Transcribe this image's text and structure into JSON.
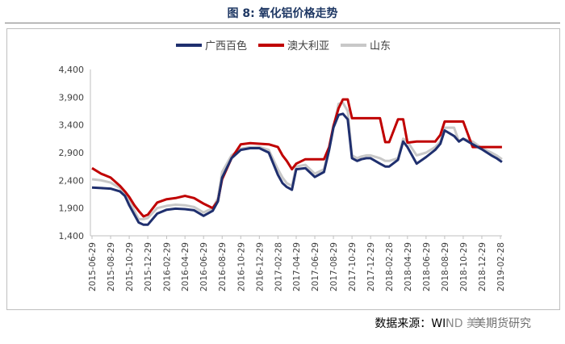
{
  "figure": {
    "title": "图 8: 氧化铝价格走势",
    "source": "数据来源：WIND  美",
    "watermark_text": "美期货研究"
  },
  "colors": {
    "guangxi": "#1f2f6e",
    "australia": "#c00000",
    "shandong": "#c8c8c8",
    "title": "#1f3864"
  },
  "chart_data": {
    "type": "line",
    "title": "",
    "xlabel": "",
    "ylabel": "",
    "ylim": [
      1400,
      4400
    ],
    "yticks": [
      "1,400",
      "1,900",
      "2,400",
      "2,900",
      "3,400",
      "3,900",
      "4,400"
    ],
    "ytick_values": [
      1400,
      1900,
      2400,
      2900,
      3400,
      3900,
      4400
    ],
    "xticks": [
      "2015-06-29",
      "2015-08-29",
      "2015-10-29",
      "2015-12-29",
      "2016-02-29",
      "2016-04-29",
      "2016-06-29",
      "2016-08-29",
      "2016-10-29",
      "2016-12-29",
      "2017-02-28",
      "2017-04-29",
      "2017-06-29",
      "2017-08-29",
      "2017-10-29",
      "2017-12-29",
      "2018-02-28",
      "2018-04-29",
      "2018-06-29",
      "2018-08-29",
      "2018-10-29",
      "2018-12-29",
      "2019-02-28"
    ],
    "legend_position": "top-center",
    "grid": false,
    "series": [
      {
        "name": "广西百色",
        "x": [
          "2015-06-29",
          "2015-07-29",
          "2015-08-29",
          "2015-09-29",
          "2015-10-15",
          "2015-10-29",
          "2015-11-15",
          "2015-11-29",
          "2015-12-15",
          "2015-12-29",
          "2016-01-29",
          "2016-02-29",
          "2016-03-29",
          "2016-04-29",
          "2016-05-29",
          "2016-06-29",
          "2016-07-29",
          "2016-08-15",
          "2016-08-29",
          "2016-09-29",
          "2016-10-29",
          "2016-11-29",
          "2016-12-29",
          "2017-01-29",
          "2017-02-28",
          "2017-03-15",
          "2017-03-29",
          "2017-04-15",
          "2017-04-29",
          "2017-05-29",
          "2017-06-29",
          "2017-07-29",
          "2017-08-15",
          "2017-08-29",
          "2017-09-15",
          "2017-09-29",
          "2017-10-15",
          "2017-10-29",
          "2017-11-15",
          "2017-11-29",
          "2017-12-15",
          "2017-12-29",
          "2018-01-29",
          "2018-02-15",
          "2018-02-28",
          "2018-03-29",
          "2018-04-15",
          "2018-04-29",
          "2018-05-29",
          "2018-06-29",
          "2018-07-29",
          "2018-08-15",
          "2018-08-29",
          "2018-09-29",
          "2018-10-15",
          "2018-10-29",
          "2018-11-29",
          "2018-12-29",
          "2019-01-29",
          "2019-02-15",
          "2019-03-05"
        ],
        "values": [
          2270,
          2260,
          2250,
          2200,
          2120,
          1950,
          1780,
          1640,
          1600,
          1600,
          1800,
          1870,
          1890,
          1880,
          1860,
          1760,
          1850,
          2020,
          2450,
          2800,
          2950,
          2980,
          2980,
          2900,
          2500,
          2350,
          2280,
          2230,
          2600,
          2620,
          2460,
          2550,
          2950,
          3350,
          3580,
          3600,
          3500,
          2800,
          2750,
          2780,
          2800,
          2800,
          2700,
          2650,
          2650,
          2770,
          3100,
          3000,
          2700,
          2820,
          2950,
          3060,
          3300,
          3200,
          3100,
          3150,
          3050,
          2960,
          2850,
          2800,
          2730
        ]
      },
      {
        "name": "澳大利亚",
        "x": [
          "2015-06-29",
          "2015-07-29",
          "2015-08-29",
          "2015-09-29",
          "2015-10-15",
          "2015-10-29",
          "2015-11-15",
          "2015-11-29",
          "2015-12-15",
          "2015-12-29",
          "2016-01-29",
          "2016-02-29",
          "2016-03-29",
          "2016-04-29",
          "2016-05-29",
          "2016-06-29",
          "2016-07-29",
          "2016-08-15",
          "2016-08-29",
          "2016-09-29",
          "2016-10-29",
          "2016-11-29",
          "2016-12-29",
          "2017-01-29",
          "2017-02-28",
          "2017-03-15",
          "2017-03-29",
          "2017-04-15",
          "2017-04-29",
          "2017-05-29",
          "2017-06-29",
          "2017-07-29",
          "2017-08-15",
          "2017-08-29",
          "2017-09-15",
          "2017-09-29",
          "2017-10-15",
          "2017-10-29",
          "2017-11-15",
          "2017-11-29",
          "2017-12-15",
          "2017-12-29",
          "2018-01-29",
          "2018-02-15",
          "2018-02-28",
          "2018-03-29",
          "2018-04-15",
          "2018-04-29",
          "2018-05-29",
          "2018-06-29",
          "2018-07-29",
          "2018-08-15",
          "2018-08-29",
          "2018-09-29",
          "2018-10-15",
          "2018-10-29",
          "2018-11-29",
          "2018-12-29",
          "2019-01-29",
          "2019-02-15",
          "2019-03-05"
        ],
        "values": [
          2620,
          2520,
          2450,
          2300,
          2200,
          2100,
          1950,
          1850,
          1750,
          1780,
          2000,
          2060,
          2080,
          2120,
          2080,
          1980,
          1900,
          2030,
          2420,
          2800,
          3050,
          3070,
          3060,
          3050,
          3000,
          2850,
          2750,
          2600,
          2700,
          2780,
          2780,
          2780,
          3000,
          3380,
          3700,
          3860,
          3860,
          3520,
          3520,
          3520,
          3520,
          3520,
          3520,
          3090,
          3090,
          3500,
          3500,
          3080,
          3100,
          3100,
          3100,
          3220,
          3460,
          3460,
          3460,
          3460,
          3000,
          3000,
          3000,
          3000,
          3000
        ]
      },
      {
        "name": "山东",
        "x": [
          "2015-06-29",
          "2015-07-29",
          "2015-08-29",
          "2015-09-29",
          "2015-10-15",
          "2015-10-29",
          "2015-11-15",
          "2015-11-29",
          "2015-12-15",
          "2015-12-29",
          "2016-01-29",
          "2016-02-29",
          "2016-03-29",
          "2016-04-29",
          "2016-05-29",
          "2016-06-29",
          "2016-07-29",
          "2016-08-15",
          "2016-08-29",
          "2016-09-29",
          "2016-10-29",
          "2016-11-29",
          "2016-12-29",
          "2017-01-29",
          "2017-02-28",
          "2017-03-15",
          "2017-03-29",
          "2017-04-15",
          "2017-04-29",
          "2017-05-29",
          "2017-06-29",
          "2017-07-29",
          "2017-08-15",
          "2017-08-29",
          "2017-09-15",
          "2017-09-29",
          "2017-10-15",
          "2017-10-29",
          "2017-11-15",
          "2017-11-29",
          "2017-12-15",
          "2017-12-29",
          "2018-01-29",
          "2018-02-15",
          "2018-02-28",
          "2018-03-29",
          "2018-04-15",
          "2018-04-29",
          "2018-05-29",
          "2018-06-29",
          "2018-07-29",
          "2018-08-15",
          "2018-08-29",
          "2018-09-29",
          "2018-10-15",
          "2018-10-29",
          "2018-11-29",
          "2018-12-29",
          "2019-01-29",
          "2019-02-15",
          "2019-03-05"
        ],
        "values": [
          2420,
          2400,
          2360,
          2260,
          2160,
          2040,
          1850,
          1700,
          1700,
          1720,
          1900,
          1940,
          1960,
          1950,
          1920,
          1820,
          1900,
          2080,
          2550,
          2850,
          2970,
          3000,
          3000,
          2950,
          2600,
          2450,
          2350,
          2300,
          2650,
          2680,
          2520,
          2600,
          2980,
          3350,
          3780,
          3800,
          3650,
          2850,
          2800,
          2830,
          2850,
          2850,
          2800,
          2750,
          2750,
          2800,
          3150,
          3100,
          2850,
          2900,
          3000,
          3100,
          3350,
          3350,
          3100,
          3150,
          3100,
          2980,
          2900,
          2850,
          2780
        ]
      }
    ]
  }
}
